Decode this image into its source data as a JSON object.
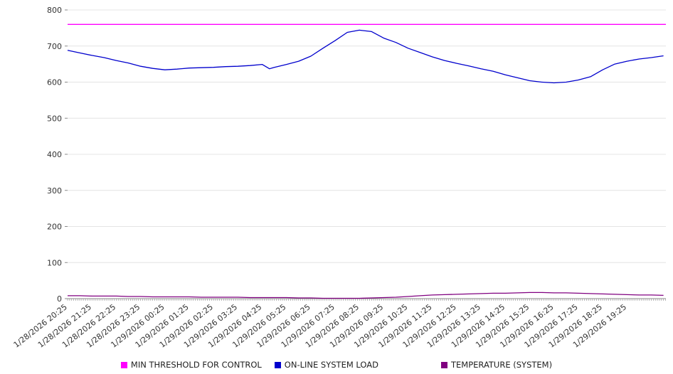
{
  "chart_data": {
    "type": "line",
    "title": "",
    "xlabel": "",
    "ylabel": "",
    "ylim": [
      0,
      800
    ],
    "y_ticks": [
      0,
      100,
      200,
      300,
      400,
      500,
      600,
      700,
      800
    ],
    "grid": true,
    "legend_position": "bottom",
    "x_max": 24.6,
    "x_labels": [
      "1/28/2026 20:25",
      "1/28/2026 21:25",
      "1/28/2026 22:25",
      "1/28/2026 23:25",
      "1/29/2026 00:25",
      "1/29/2026 01:25",
      "1/29/2026 02:25",
      "1/29/2026 03:25",
      "1/29/2026 04:25",
      "1/29/2026 05:25",
      "1/29/2026 06:25",
      "1/29/2026 07:25",
      "1/29/2026 08:25",
      "1/29/2026 09:25",
      "1/29/2026 10:25",
      "1/29/2026 11:25",
      "1/29/2026 12:25",
      "1/29/2026 13:25",
      "1/29/2026 14:25",
      "1/29/2026 15:25",
      "1/29/2026 16:25",
      "1/29/2026 17:25",
      "1/29/2026 18:25",
      "1/29/2026 19:25"
    ],
    "x": [
      0,
      0.5,
      1,
      1.5,
      2,
      2.5,
      3,
      3.5,
      4,
      4.5,
      5,
      5.5,
      6,
      6.5,
      7,
      7.5,
      8,
      8.3,
      8.5,
      9,
      9.5,
      10,
      10.5,
      11,
      11.5,
      12,
      12.5,
      13,
      13.5,
      14,
      14.5,
      15,
      15.5,
      16,
      16.5,
      17,
      17.5,
      18,
      18.5,
      19,
      19.5,
      20,
      20.5,
      21,
      21.5,
      22,
      22.5,
      23,
      23.5,
      24,
      24.5
    ],
    "series": [
      {
        "name": "MIN THRESHOLD FOR CONTROL",
        "color": "#ff00ff",
        "values": [
          760
        ]
      },
      {
        "name": "ON-LINE SYSTEM LOAD",
        "color": "#0000cd",
        "values": [
          688,
          681,
          674,
          668,
          660,
          653,
          644,
          638,
          634,
          636,
          639,
          640,
          641,
          643,
          644,
          646,
          649,
          637,
          641,
          649,
          658,
          672,
          694,
          715,
          738,
          744,
          740,
          722,
          710,
          694,
          682,
          670,
          660,
          652,
          645,
          637,
          630,
          620,
          612,
          604,
          600,
          598,
          600,
          606,
          615,
          634,
          650,
          658,
          664,
          668,
          673
        ]
      },
      {
        "name": "TEMPERATURE (SYSTEM)",
        "color": "#800080",
        "values": [
          8,
          8,
          7,
          7,
          7,
          6,
          6,
          5,
          5,
          5,
          5,
          4,
          4,
          4,
          4,
          3,
          3,
          3,
          3,
          3,
          2,
          2,
          1,
          1,
          1,
          1,
          2,
          3,
          4,
          6,
          8,
          10,
          11,
          12,
          13,
          14,
          15,
          15,
          16,
          17,
          17,
          16,
          16,
          15,
          14,
          13,
          12,
          11,
          10,
          10,
          9
        ]
      }
    ]
  }
}
